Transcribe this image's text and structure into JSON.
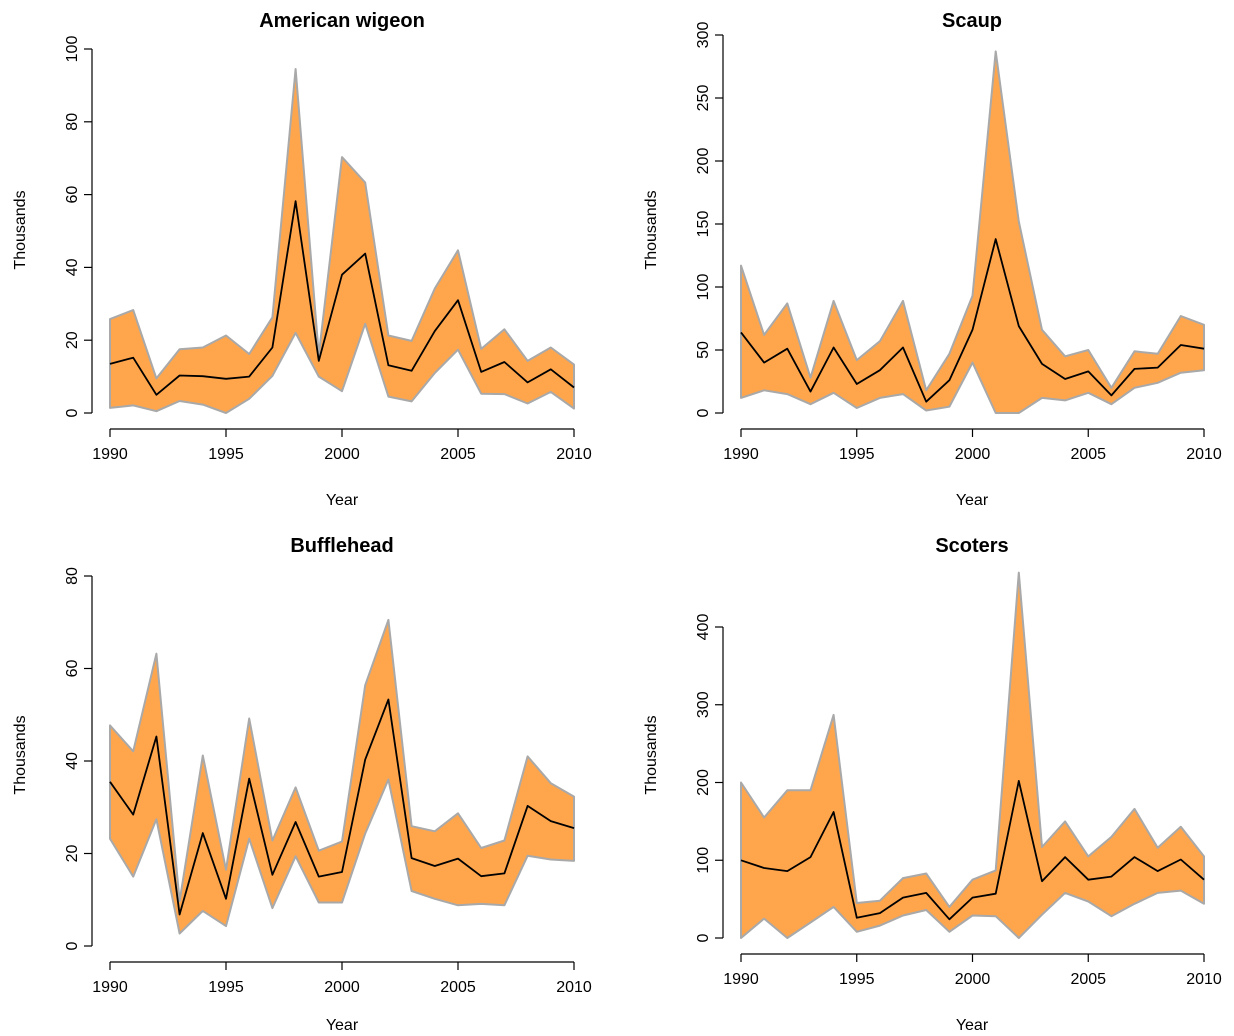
{
  "colors": {
    "band_fill": "#FFA64D",
    "band_edge": "#A9A9A9",
    "line": "#000000"
  },
  "chart_data": [
    {
      "type": "area",
      "title": "American wigeon",
      "xlabel": "Year",
      "ylabel": "Thousands",
      "xlim": [
        1990,
        2010
      ],
      "ylim": [
        0,
        100
      ],
      "xticks": [
        1990,
        1995,
        2000,
        2005,
        2010
      ],
      "yticks": [
        0,
        20,
        40,
        60,
        80,
        100
      ],
      "x": [
        1990,
        1991,
        1992,
        1993,
        1994,
        1995,
        1996,
        1997,
        1998,
        1999,
        2000,
        2001,
        2002,
        2003,
        2004,
        2005,
        2006,
        2007,
        2008,
        2009,
        2010
      ],
      "series": [
        {
          "role": "upper",
          "values": [
            25.8,
            28.3,
            9.5,
            17.5,
            18,
            21.3,
            16.2,
            26.3,
            94.5,
            16,
            70.3,
            63.3,
            21.3,
            19.8,
            34.2,
            44.7,
            17.6,
            23,
            14.3,
            18,
            13.3
          ]
        },
        {
          "role": "estimate",
          "values": [
            13.5,
            15.2,
            5,
            10.3,
            10.1,
            9.4,
            10,
            18,
            58.2,
            14.3,
            38,
            43.8,
            13.1,
            11.6,
            22.5,
            31,
            11.3,
            14,
            8.4,
            12,
            7
          ]
        },
        {
          "role": "lower",
          "values": [
            1.4,
            2.1,
            0.5,
            3.3,
            2.3,
            0,
            3.9,
            10.2,
            22,
            10,
            6,
            24.5,
            4.5,
            3.2,
            11,
            17.4,
            5.3,
            5.2,
            2.6,
            5.8,
            1.2
          ]
        }
      ]
    },
    {
      "type": "area",
      "title": "Scaup",
      "xlabel": "Year",
      "ylabel": "Thousands",
      "xlim": [
        1990,
        2010
      ],
      "ylim": [
        0,
        300
      ],
      "xticks": [
        1990,
        1995,
        2000,
        2005,
        2010
      ],
      "yticks": [
        0,
        50,
        100,
        150,
        200,
        250,
        300
      ],
      "x": [
        1990,
        1991,
        1992,
        1993,
        1994,
        1995,
        1996,
        1997,
        1998,
        1999,
        2000,
        2001,
        2002,
        2003,
        2004,
        2005,
        2006,
        2007,
        2008,
        2009,
        2010
      ],
      "series": [
        {
          "role": "upper",
          "values": [
            117,
            62,
            87,
            28,
            89,
            42,
            57,
            89,
            18,
            47,
            93,
            287,
            152,
            66,
            45,
            50,
            20,
            49,
            47,
            77,
            70
          ]
        },
        {
          "role": "estimate",
          "values": [
            64,
            40,
            51,
            17,
            52,
            23,
            34,
            52,
            9,
            26,
            66,
            138,
            69,
            39,
            27,
            33,
            14,
            35,
            36,
            54,
            51
          ]
        },
        {
          "role": "lower",
          "values": [
            12,
            18,
            15,
            7,
            16,
            4,
            12,
            15,
            2,
            5,
            40,
            0,
            0,
            12,
            10,
            16,
            7,
            20,
            24,
            32,
            34
          ]
        }
      ]
    },
    {
      "type": "area",
      "title": "Bufflehead",
      "xlabel": "Year",
      "ylabel": "Thousands",
      "xlim": [
        1990,
        2010
      ],
      "ylim": [
        0,
        80
      ],
      "xticks": [
        1990,
        1995,
        2000,
        2005,
        2010
      ],
      "yticks": [
        0,
        20,
        40,
        60,
        80
      ],
      "x": [
        1990,
        1991,
        1992,
        1993,
        1994,
        1995,
        1996,
        1997,
        1998,
        1999,
        2000,
        2001,
        2002,
        2003,
        2004,
        2005,
        2006,
        2007,
        2008,
        2009,
        2010
      ],
      "series": [
        {
          "role": "upper",
          "values": [
            47.7,
            42.1,
            63.2,
            9.7,
            41.2,
            16.5,
            49.2,
            22.8,
            34.3,
            20.6,
            22.6,
            56.4,
            70.5,
            25.9,
            24.8,
            28.7,
            21.2,
            22.8,
            41,
            35.2,
            32.3
          ]
        },
        {
          "role": "estimate",
          "values": [
            35.5,
            28.4,
            45.3,
            6.8,
            24.4,
            10.2,
            36.2,
            15.4,
            26.8,
            15,
            16,
            40.3,
            53.3,
            19,
            17.3,
            18.9,
            15.1,
            15.7,
            30.3,
            27,
            25.5
          ]
        },
        {
          "role": "lower",
          "values": [
            23.2,
            15,
            27.4,
            2.7,
            7.6,
            4.3,
            23.2,
            8.2,
            19.4,
            9.4,
            9.4,
            24.3,
            36,
            11.9,
            10.2,
            8.8,
            9.1,
            8.8,
            19.5,
            18.7,
            18.4
          ]
        }
      ]
    },
    {
      "type": "area",
      "title": "Scoters",
      "xlabel": "Year",
      "ylabel": "Thousands",
      "xlim": [
        1990,
        2010
      ],
      "ylim": [
        0,
        400
      ],
      "xticks": [
        1990,
        1995,
        2000,
        2005,
        2010
      ],
      "yticks": [
        0,
        100,
        200,
        300,
        400
      ],
      "x": [
        1990,
        1991,
        1992,
        1993,
        1994,
        1995,
        1996,
        1997,
        1998,
        1999,
        2000,
        2001,
        2002,
        2003,
        2004,
        2005,
        2006,
        2007,
        2008,
        2009,
        2010
      ],
      "series": [
        {
          "role": "upper",
          "values": [
            200,
            155,
            190,
            190,
            287,
            45,
            48,
            77,
            83,
            40,
            75,
            87,
            470,
            117,
            150,
            105,
            130,
            166,
            116,
            143,
            105
          ]
        },
        {
          "role": "estimate",
          "values": [
            100,
            90,
            86,
            104,
            162,
            26,
            32,
            52,
            58,
            24,
            52,
            57,
            202,
            73,
            104,
            75,
            79,
            104,
            86,
            101,
            75
          ]
        },
        {
          "role": "lower",
          "values": [
            0,
            25,
            0,
            20,
            40,
            8,
            16,
            29,
            36,
            8,
            29,
            28,
            0,
            30,
            58,
            47,
            28,
            44,
            58,
            61,
            44
          ]
        }
      ]
    }
  ]
}
